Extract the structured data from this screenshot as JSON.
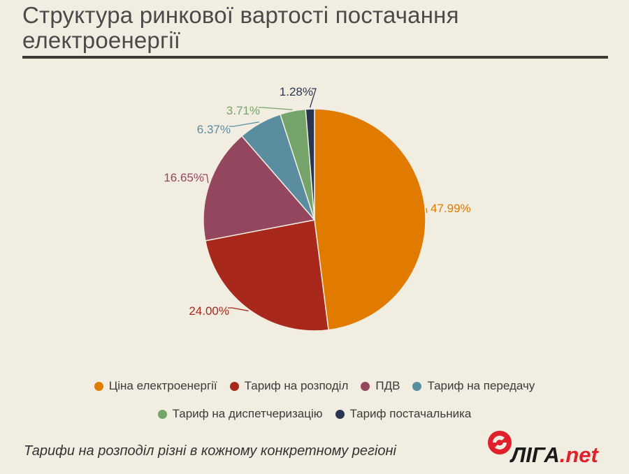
{
  "header": {
    "title_line1": "Структура ринкової вартості постачання",
    "title_line2": "електроенергії"
  },
  "chart_data": {
    "type": "pie",
    "title": "Структура ринкової вартості постачання електроенергії",
    "slices": [
      {
        "label": "Ціна електроенергії",
        "value": 47.99,
        "display": "47.99%",
        "color": "#e07b00"
      },
      {
        "label": "Тариф на розподіл",
        "value": 24.0,
        "display": "24.00%",
        "color": "#a8281c"
      },
      {
        "label": "ПДВ",
        "value": 16.65,
        "display": "16.65%",
        "color": "#94465e"
      },
      {
        "label": "Тариф на передачу",
        "value": 6.37,
        "display": "6.37%",
        "color": "#5a8da0"
      },
      {
        "label": "Тариф на диспетчеризацію",
        "value": 3.71,
        "display": "3.71%",
        "color": "#74a46a"
      },
      {
        "label": "Тариф постачальника",
        "value": 1.28,
        "display": "1.28%",
        "color": "#2a3550"
      }
    ],
    "legend_position": "bottom"
  },
  "footnote": "Тарифи на розподіл різні в кожному конкретному регіоні",
  "logo": {
    "text": "ЛІГА.net",
    "color_red": "#e0202a",
    "color_dark": "#1a1a1a"
  }
}
